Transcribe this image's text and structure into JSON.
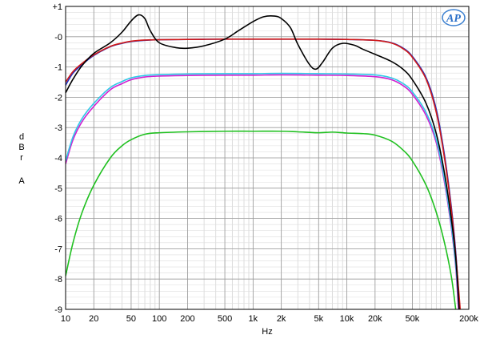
{
  "chart_data": {
    "type": "line",
    "xlabel": "Hz",
    "ylabel": "dBr A",
    "ylabel_lines": [
      "d",
      "B",
      "r",
      "",
      "A"
    ],
    "xscale": "log",
    "xlim": [
      10,
      200000
    ],
    "ylim": [
      -9,
      1
    ],
    "grid": true,
    "logo": "AP",
    "xticks": [
      {
        "value": 10,
        "label": "10"
      },
      {
        "value": 20,
        "label": "20"
      },
      {
        "value": 50,
        "label": "50"
      },
      {
        "value": 100,
        "label": "100"
      },
      {
        "value": 200,
        "label": "200"
      },
      {
        "value": 500,
        "label": "500"
      },
      {
        "value": 1000,
        "label": "1k"
      },
      {
        "value": 2000,
        "label": "2k"
      },
      {
        "value": 5000,
        "label": "5k"
      },
      {
        "value": 10000,
        "label": "10k"
      },
      {
        "value": 20000,
        "label": "20k"
      },
      {
        "value": 50000,
        "label": "50k"
      },
      {
        "value": 200000,
        "label": "200k"
      }
    ],
    "yticks": [
      {
        "value": 1,
        "label": "+1"
      },
      {
        "value": 0,
        "label": "-0"
      },
      {
        "value": -1,
        "label": "-1"
      },
      {
        "value": -2,
        "label": "-2"
      },
      {
        "value": -3,
        "label": "-3"
      },
      {
        "value": -4,
        "label": "-4"
      },
      {
        "value": -5,
        "label": "-5"
      },
      {
        "value": -6,
        "label": "-6"
      },
      {
        "value": -7,
        "label": "-7"
      },
      {
        "value": -8,
        "label": "-8"
      },
      {
        "value": -9,
        "label": "-9"
      }
    ],
    "series": [
      {
        "color": "#20c020",
        "points": [
          [
            10,
            -7.9
          ],
          [
            12,
            -6.8
          ],
          [
            15,
            -5.8
          ],
          [
            20,
            -4.9
          ],
          [
            30,
            -4.0
          ],
          [
            40,
            -3.6
          ],
          [
            50,
            -3.4
          ],
          [
            70,
            -3.22
          ],
          [
            100,
            -3.17
          ],
          [
            200,
            -3.14
          ],
          [
            500,
            -3.12
          ],
          [
            1000,
            -3.12
          ],
          [
            2000,
            -3.12
          ],
          [
            3000,
            -3.14
          ],
          [
            5000,
            -3.17
          ],
          [
            7000,
            -3.15
          ],
          [
            10000,
            -3.18
          ],
          [
            15000,
            -3.2
          ],
          [
            20000,
            -3.25
          ],
          [
            30000,
            -3.45
          ],
          [
            40000,
            -3.75
          ],
          [
            50000,
            -4.1
          ],
          [
            70000,
            -4.9
          ],
          [
            90000,
            -5.8
          ],
          [
            110000,
            -6.8
          ],
          [
            130000,
            -7.9
          ],
          [
            145000,
            -9.0
          ]
        ]
      },
      {
        "color": "#d020d0",
        "points": [
          [
            10,
            -4.2
          ],
          [
            12,
            -3.4
          ],
          [
            15,
            -2.8
          ],
          [
            20,
            -2.3
          ],
          [
            30,
            -1.75
          ],
          [
            40,
            -1.55
          ],
          [
            50,
            -1.42
          ],
          [
            70,
            -1.33
          ],
          [
            100,
            -1.3
          ],
          [
            200,
            -1.28
          ],
          [
            500,
            -1.27
          ],
          [
            1000,
            -1.27
          ],
          [
            2000,
            -1.26
          ],
          [
            5000,
            -1.27
          ],
          [
            10000,
            -1.28
          ],
          [
            20000,
            -1.32
          ],
          [
            30000,
            -1.42
          ],
          [
            40000,
            -1.62
          ],
          [
            50000,
            -1.9
          ],
          [
            70000,
            -2.6
          ],
          [
            90000,
            -3.5
          ],
          [
            110000,
            -4.8
          ],
          [
            130000,
            -6.3
          ],
          [
            145000,
            -7.6
          ],
          [
            155000,
            -9.0
          ]
        ]
      },
      {
        "color": "#30c8e8",
        "points": [
          [
            10,
            -4.1
          ],
          [
            12,
            -3.3
          ],
          [
            15,
            -2.7
          ],
          [
            20,
            -2.2
          ],
          [
            30,
            -1.68
          ],
          [
            40,
            -1.48
          ],
          [
            50,
            -1.36
          ],
          [
            70,
            -1.28
          ],
          [
            100,
            -1.25
          ],
          [
            200,
            -1.23
          ],
          [
            500,
            -1.22
          ],
          [
            1000,
            -1.22
          ],
          [
            2000,
            -1.21
          ],
          [
            5000,
            -1.22
          ],
          [
            10000,
            -1.23
          ],
          [
            20000,
            -1.26
          ],
          [
            30000,
            -1.36
          ],
          [
            40000,
            -1.55
          ],
          [
            50000,
            -1.82
          ],
          [
            70000,
            -2.5
          ],
          [
            90000,
            -3.4
          ],
          [
            110000,
            -4.7
          ],
          [
            130000,
            -6.2
          ],
          [
            145000,
            -7.5
          ],
          [
            158000,
            -9.0
          ]
        ]
      },
      {
        "color": "#2030c0",
        "points": [
          [
            10,
            -1.6
          ],
          [
            12,
            -1.2
          ],
          [
            15,
            -0.92
          ],
          [
            20,
            -0.62
          ],
          [
            30,
            -0.33
          ],
          [
            40,
            -0.22
          ],
          [
            50,
            -0.16
          ],
          [
            70,
            -0.12
          ],
          [
            100,
            -0.1
          ],
          [
            200,
            -0.09
          ],
          [
            500,
            -0.08
          ],
          [
            1000,
            -0.08
          ],
          [
            2000,
            -0.08
          ],
          [
            5000,
            -0.08
          ],
          [
            10000,
            -0.09
          ],
          [
            20000,
            -0.12
          ],
          [
            30000,
            -0.2
          ],
          [
            40000,
            -0.38
          ],
          [
            50000,
            -0.65
          ],
          [
            70000,
            -1.35
          ],
          [
            90000,
            -2.4
          ],
          [
            110000,
            -3.9
          ],
          [
            130000,
            -5.6
          ],
          [
            145000,
            -7.1
          ],
          [
            160000,
            -9.0
          ]
        ]
      },
      {
        "color": "#d01818",
        "points": [
          [
            10,
            -1.5
          ],
          [
            12,
            -1.15
          ],
          [
            15,
            -0.88
          ],
          [
            20,
            -0.6
          ],
          [
            30,
            -0.32
          ],
          [
            40,
            -0.21
          ],
          [
            50,
            -0.15
          ],
          [
            70,
            -0.11
          ],
          [
            100,
            -0.1
          ],
          [
            200,
            -0.09
          ],
          [
            500,
            -0.08
          ],
          [
            1000,
            -0.08
          ],
          [
            2000,
            -0.08
          ],
          [
            5000,
            -0.08
          ],
          [
            10000,
            -0.09
          ],
          [
            20000,
            -0.12
          ],
          [
            30000,
            -0.21
          ],
          [
            40000,
            -0.4
          ],
          [
            50000,
            -0.68
          ],
          [
            70000,
            -1.4
          ],
          [
            90000,
            -2.5
          ],
          [
            110000,
            -4.0
          ],
          [
            130000,
            -5.7
          ],
          [
            145000,
            -7.2
          ],
          [
            162000,
            -9.0
          ]
        ]
      },
      {
        "color": "#000000",
        "points": [
          [
            10,
            -1.85
          ],
          [
            12,
            -1.4
          ],
          [
            15,
            -0.95
          ],
          [
            20,
            -0.55
          ],
          [
            30,
            -0.2
          ],
          [
            40,
            0.15
          ],
          [
            50,
            0.52
          ],
          [
            60,
            0.72
          ],
          [
            70,
            0.6
          ],
          [
            80,
            0.2
          ],
          [
            100,
            -0.2
          ],
          [
            150,
            -0.36
          ],
          [
            200,
            -0.38
          ],
          [
            300,
            -0.3
          ],
          [
            500,
            -0.08
          ],
          [
            700,
            0.2
          ],
          [
            1000,
            0.5
          ],
          [
            1300,
            0.66
          ],
          [
            1700,
            0.68
          ],
          [
            2000,
            0.6
          ],
          [
            2500,
            0.3
          ],
          [
            3000,
            -0.25
          ],
          [
            4000,
            -0.92
          ],
          [
            4700,
            -1.07
          ],
          [
            5500,
            -0.85
          ],
          [
            7000,
            -0.38
          ],
          [
            9000,
            -0.22
          ],
          [
            12000,
            -0.28
          ],
          [
            15000,
            -0.42
          ],
          [
            20000,
            -0.58
          ],
          [
            30000,
            -0.82
          ],
          [
            40000,
            -1.08
          ],
          [
            50000,
            -1.42
          ],
          [
            70000,
            -2.2
          ],
          [
            90000,
            -3.2
          ],
          [
            110000,
            -4.5
          ],
          [
            130000,
            -6.0
          ],
          [
            145000,
            -7.3
          ],
          [
            158000,
            -9.0
          ]
        ]
      }
    ]
  }
}
